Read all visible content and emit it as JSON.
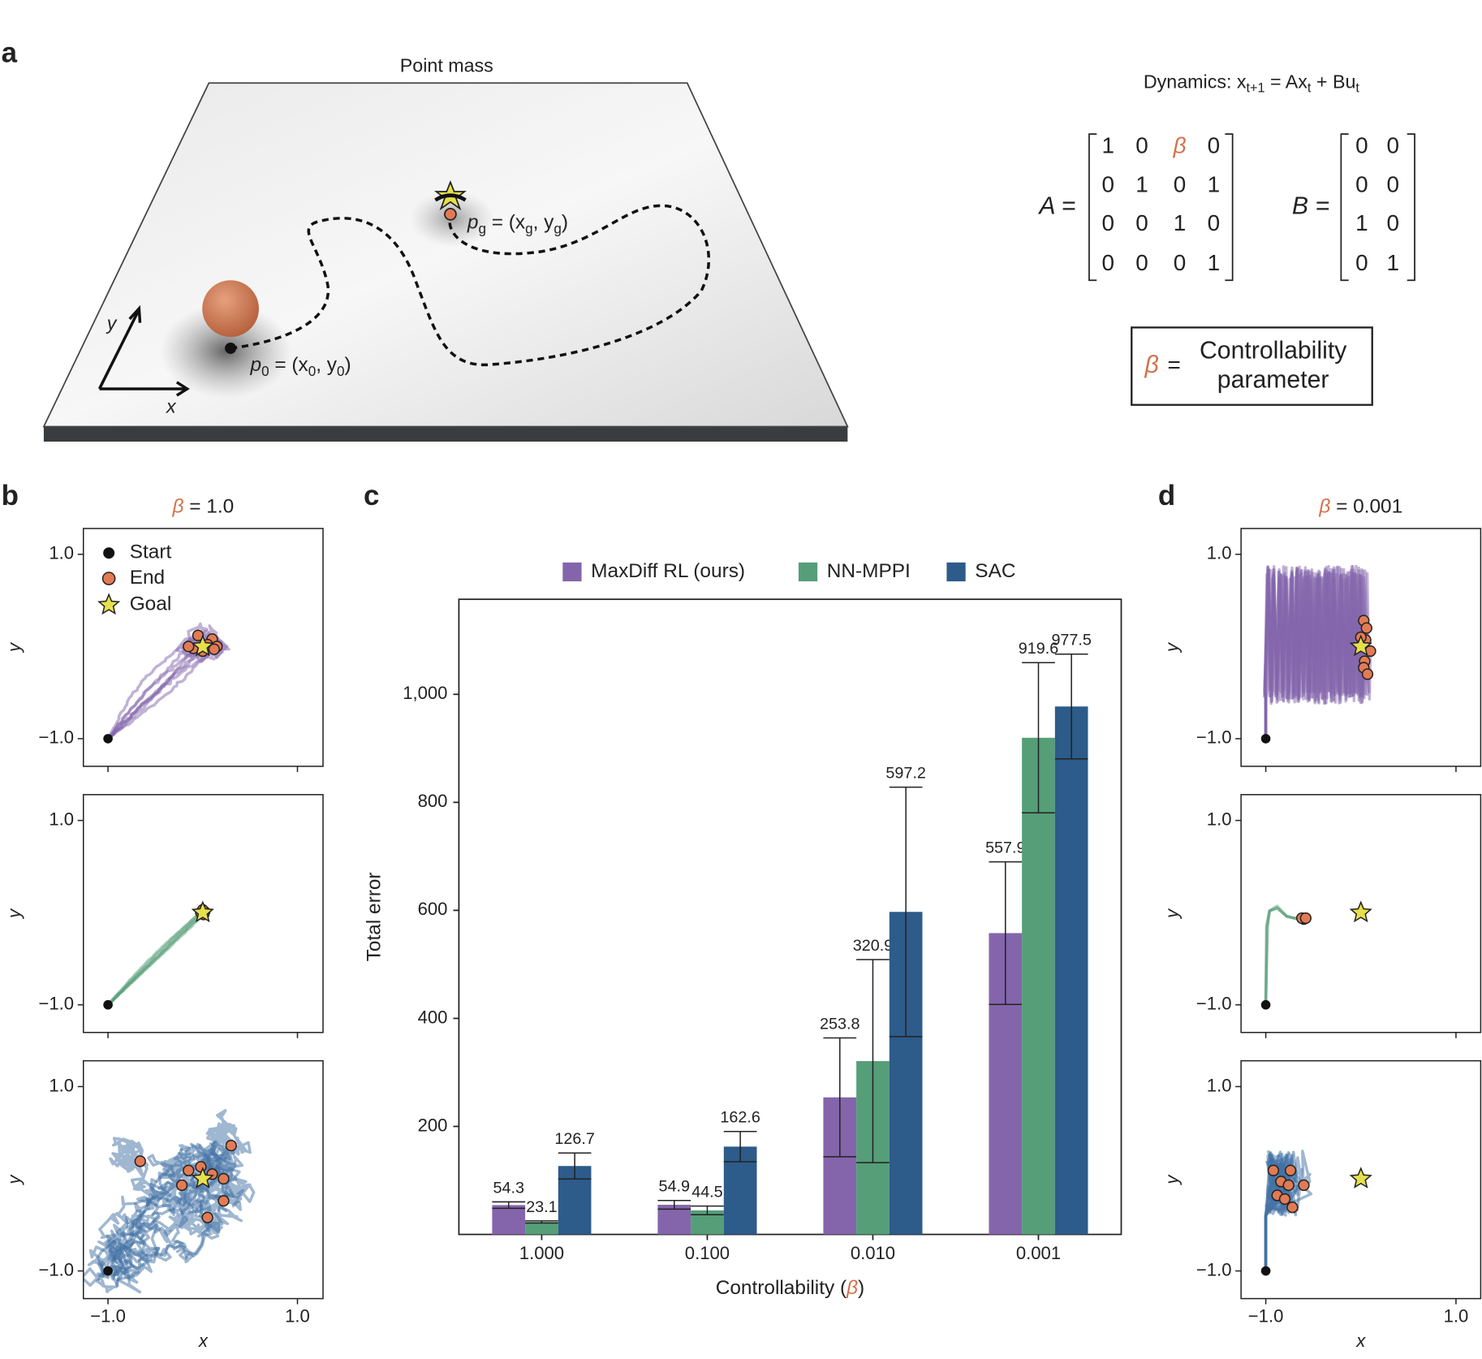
{
  "panel_a": {
    "label": "a",
    "title": "Point mass",
    "axis_x": "x",
    "axis_y": "y",
    "start_label": [
      "p",
      "0",
      " = (x",
      "0",
      ", y",
      "0",
      ")"
    ],
    "goal_label": [
      "p",
      "g",
      " = (x",
      "g",
      ", y",
      "g",
      ")"
    ],
    "dynamics": [
      "Dynamics: x",
      "t+1",
      " = Ax",
      "t",
      " + Bu",
      "t"
    ],
    "A_label": "A =",
    "A": [
      [
        "1",
        "0",
        "β",
        "0"
      ],
      [
        "0",
        "1",
        "0",
        "1"
      ],
      [
        "0",
        "0",
        "1",
        "0"
      ],
      [
        "0",
        "0",
        "0",
        "1"
      ]
    ],
    "B_label": "B =",
    "B": [
      [
        "0",
        "0"
      ],
      [
        "0",
        "0"
      ],
      [
        "1",
        "0"
      ],
      [
        "0",
        "1"
      ]
    ],
    "param": {
      "symbol": "β",
      "equals": "=",
      "text": [
        "Controllability",
        "parameter"
      ]
    }
  },
  "chart_data": [
    {
      "type": "bar",
      "panel_label": "c",
      "y_label": "Total error",
      "x_label": [
        "Controllability (",
        "β",
        ")"
      ],
      "categories": [
        "1.000",
        "0.100",
        "0.010",
        "0.001"
      ],
      "series": [
        {
          "name": "MaxDiff RL (ours)",
          "color": "#8465ab",
          "values": [
            54.3,
            54.9,
            253.8,
            557.9
          ],
          "errors": [
            6,
            8,
            110,
            132
          ]
        },
        {
          "name": "NN-MPPI",
          "color": "#559e78",
          "values": [
            23.1,
            44.5,
            320.9,
            919.6
          ],
          "errors": [
            2,
            8,
            188,
            139
          ]
        },
        {
          "name": "SAC",
          "color": "#2d5b8a",
          "values": [
            126.7,
            162.6,
            597.2,
            977.5
          ],
          "errors": [
            24,
            28,
            231,
            97
          ]
        }
      ],
      "ylim": [
        0,
        1176
      ],
      "yticks": [
        200,
        400,
        600,
        800,
        {
          "value": 1000,
          "label": "1,000"
        }
      ]
    },
    {
      "type": "scatter",
      "panel_label": "b",
      "title": [
        "β",
        " = 1.0"
      ],
      "x_label": "x",
      "y_label": "y",
      "xlim": [
        -1.26,
        1.27
      ],
      "ylim": [
        -1.3,
        1.28
      ],
      "xticks": [
        {
          "value": -1,
          "label": "−1.0"
        },
        {
          "value": 1,
          "label": "1.0"
        }
      ],
      "yticks": [
        {
          "value": -1,
          "label": "−1.0"
        },
        {
          "value": 1,
          "label": "1.0"
        }
      ],
      "legend": [
        "Start",
        "End",
        "Goal"
      ],
      "subplots": [
        {
          "color": "#8465ab",
          "start": [
            -1,
            -1
          ],
          "goal": [
            0,
            0
          ],
          "ends": {
            "x": [
              -0.05,
              0.1,
              0.15,
              -0.1,
              0.0,
              0.05,
              -0.15,
              0.12
            ],
            "y": [
              0.12,
              0.08,
              0.0,
              -0.02,
              -0.05,
              0.02,
              0.0,
              -0.03
            ]
          }
        },
        {
          "color": "#559e78",
          "start": [
            -1,
            -1
          ],
          "goal": [
            0,
            0
          ],
          "ends": {
            "x": [
              0.0,
              0.02,
              -0.02,
              0.01,
              0.0
            ],
            "y": [
              0.0,
              0.01,
              0.0,
              -0.02,
              0.03
            ]
          }
        },
        {
          "color": "#3f6fa3",
          "start": [
            -1,
            -1
          ],
          "goal": [
            0,
            0
          ],
          "ends": {
            "x": [
              -0.66,
              0.3,
              -0.15,
              -0.22,
              0.22,
              0.22,
              0.05,
              -0.02,
              0.1
            ],
            "y": [
              0.19,
              0.36,
              0.09,
              -0.07,
              0.0,
              -0.24,
              -0.42,
              0.13,
              0.05
            ]
          }
        }
      ]
    },
    {
      "type": "scatter",
      "panel_label": "d",
      "title": [
        "β",
        " = 0.001"
      ],
      "x_label": "x",
      "y_label": "y",
      "xlim": [
        -1.26,
        1.26
      ],
      "ylim": [
        -1.3,
        1.28
      ],
      "xticks": [
        {
          "value": -1,
          "label": "−1.0"
        },
        {
          "value": 1,
          "label": "1.0"
        }
      ],
      "yticks": [
        {
          "value": -1,
          "label": "−1.0"
        },
        {
          "value": 1,
          "label": "1.0"
        }
      ],
      "subplots": [
        {
          "color": "#8465ab",
          "start": [
            -1,
            -1
          ],
          "goal": [
            0,
            0
          ],
          "ends": {
            "x": [
              0.03,
              0.06,
              0.05,
              0.1,
              0.04,
              0.03,
              0.07,
              0.0
            ],
            "y": [
              0.28,
              0.2,
              0.07,
              -0.05,
              -0.16,
              -0.23,
              -0.3,
              0.1
            ]
          }
        },
        {
          "color": "#559e78",
          "start": [
            -1,
            -1
          ],
          "goal": [
            0,
            0
          ],
          "ends": {
            "x": [
              -0.6,
              -0.62,
              -0.58
            ],
            "y": [
              -0.07,
              -0.06,
              -0.06
            ]
          }
        },
        {
          "color": "#3f6fa3",
          "start": [
            -1,
            -1
          ],
          "goal": [
            0,
            0
          ],
          "ends": {
            "x": [
              -0.92,
              -0.84,
              -0.74,
              -0.76,
              -0.6,
              -0.88,
              -0.72,
              -0.8
            ],
            "y": [
              0.09,
              -0.03,
              0.09,
              -0.07,
              -0.07,
              -0.18,
              -0.31,
              -0.22
            ]
          }
        }
      ]
    }
  ]
}
